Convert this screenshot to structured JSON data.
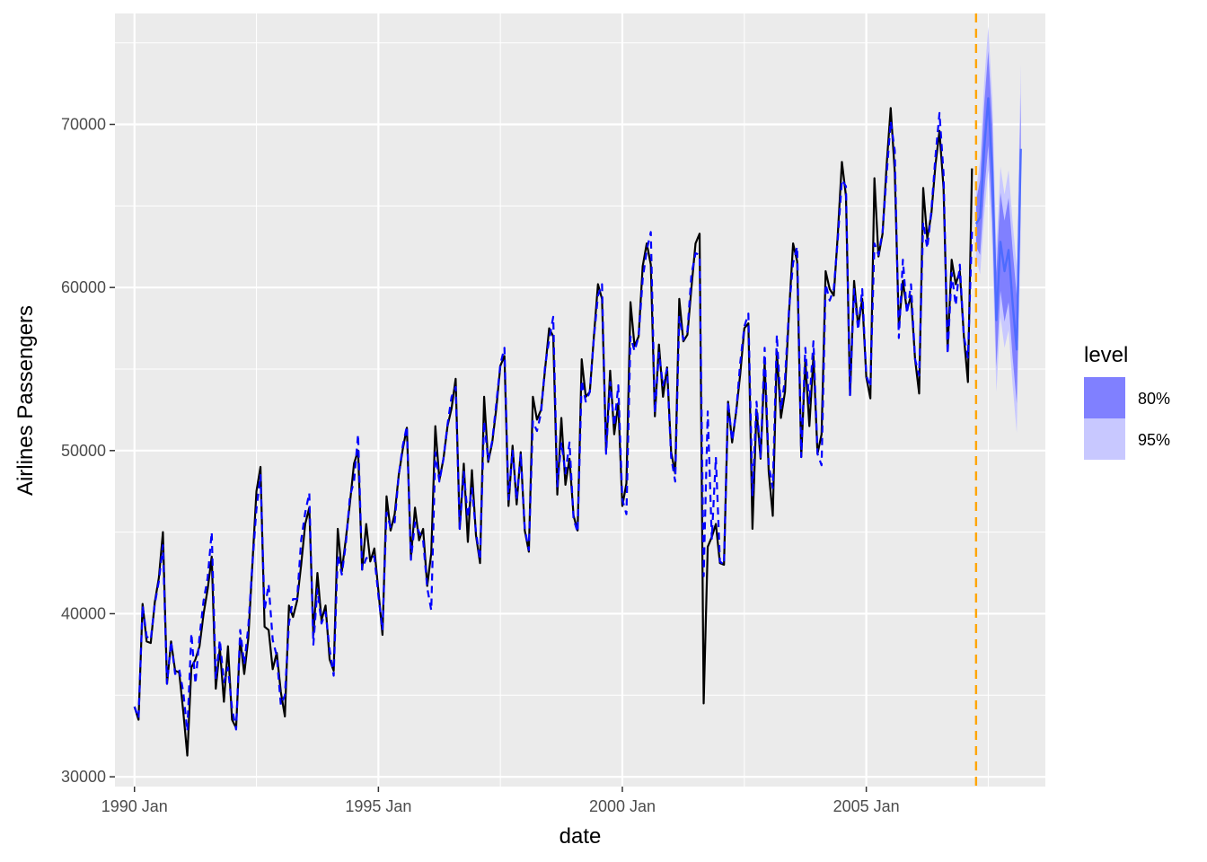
{
  "chart_data": {
    "type": "line",
    "title": "",
    "xlabel": "date",
    "ylabel": "Airlines Passengers",
    "ylim": [
      29400,
      76800
    ],
    "xlim": [
      1989.6,
      2008.67
    ],
    "x_ticks": [
      {
        "value": 1990,
        "label": "1990 Jan"
      },
      {
        "value": 1995,
        "label": "1995 Jan"
      },
      {
        "value": 2000,
        "label": "2000 Jan"
      },
      {
        "value": 2005,
        "label": "2005 Jan"
      }
    ],
    "y_ticks": [
      30000,
      40000,
      50000,
      60000,
      70000
    ],
    "y_tick_labels": [
      "30000",
      "40000",
      "50000",
      "60000",
      "70000"
    ],
    "grid": true,
    "colors": {
      "panel": "#ebebeb",
      "grid": "#ffffff",
      "actual": "#000000",
      "fitted": "#0000ff",
      "forecast_line": "#4d6bff",
      "band_80": "#8080ff",
      "band_95": "#c8c8ff",
      "cutoff": "#ffa500"
    },
    "cutoff_date": 2007.25,
    "actual": {
      "start": 1990,
      "values": [
        34300,
        33500,
        40600,
        38300,
        38200,
        40700,
        42200,
        45000,
        35700,
        38300,
        36500,
        36400,
        34000,
        31300,
        36700,
        37200,
        38000,
        40000,
        41500,
        43500,
        35400,
        37900,
        34600,
        38000,
        33500,
        33000,
        38500,
        36300,
        38500,
        43000,
        47500,
        49000,
        39200,
        39000,
        36600,
        37600,
        35200,
        33700,
        40500,
        39800,
        40800,
        43000,
        45500,
        46500,
        38700,
        42500,
        39600,
        40500,
        37200,
        36500,
        45200,
        42600,
        44600,
        46800,
        49200,
        50000,
        42700,
        45500,
        43200,
        44000,
        41400,
        38700,
        47200,
        45100,
        46100,
        48500,
        50100,
        51400,
        43400,
        46500,
        44500,
        45200,
        41700,
        43700,
        51500,
        48200,
        49500,
        51500,
        52600,
        54400,
        45200,
        49200,
        44400,
        48800,
        44800,
        43100,
        53300,
        49300,
        50500,
        52600,
        55200,
        55800,
        46600,
        50300,
        46700,
        49900,
        45100,
        43800,
        53300,
        51900,
        52500,
        55000,
        57500,
        57000,
        47300,
        52000,
        47900,
        49500,
        46000,
        45100,
        55600,
        53300,
        53600,
        57000,
        60200,
        59300,
        50000,
        54900,
        51000,
        52900,
        46600,
        48000,
        59100,
        56400,
        57000,
        61300,
        62700,
        61400,
        52100,
        56500,
        53300,
        55100,
        49900,
        48600,
        59300,
        56700,
        57100,
        60000,
        62700,
        63300,
        34500,
        44100,
        44700,
        45500,
        43100,
        43000,
        53000,
        50500,
        52400,
        54700,
        57500,
        57800,
        45200,
        52500,
        49500,
        55400,
        48700,
        46000,
        56100,
        52000,
        53600,
        58500,
        62700,
        61600,
        49600,
        55500,
        51500,
        55800,
        49800,
        51000,
        61000,
        59900,
        59500,
        63300,
        67700,
        65600,
        53400,
        60400,
        57600,
        59300,
        54500,
        53200,
        66700,
        61900,
        63300,
        67500,
        71000,
        67100,
        57600,
        60400,
        58600,
        59500,
        55600,
        53500,
        66100,
        63000,
        64500,
        67500,
        69600,
        66100,
        56200,
        61700,
        60200,
        61000,
        57000,
        54200,
        67300
      ]
    },
    "fitted": {
      "start": 1990,
      "values": [
        34300,
        33600,
        40500,
        38600,
        38400,
        40600,
        42000,
        44200,
        35700,
        38300,
        36300,
        36600,
        35200,
        32800,
        38800,
        35700,
        38600,
        40800,
        42200,
        45000,
        36000,
        38400,
        35800,
        36700,
        34200,
        32900,
        39000,
        36900,
        39200,
        43000,
        46400,
        48500,
        40200,
        41800,
        38400,
        37400,
        34400,
        35000,
        39400,
        40900,
        40900,
        44500,
        46200,
        47400,
        38100,
        41500,
        39400,
        40100,
        37800,
        36200,
        43600,
        42400,
        44300,
        47200,
        48100,
        51000,
        42700,
        43400,
        43500,
        43500,
        41100,
        39000,
        46200,
        45300,
        45600,
        48500,
        50300,
        51500,
        43300,
        45600,
        45000,
        44500,
        41600,
        40200,
        49900,
        48100,
        49500,
        51600,
        53300,
        53900,
        45200,
        48700,
        45900,
        47700,
        45000,
        43300,
        51800,
        49400,
        50600,
        52900,
        55300,
        56300,
        47000,
        50000,
        47000,
        49800,
        45200,
        43900,
        51800,
        51200,
        52300,
        55200,
        56800,
        58200,
        47800,
        50500,
        48600,
        50500,
        45800,
        45000,
        54300,
        53000,
        53600,
        56900,
        59500,
        60200,
        49800,
        54200,
        51500,
        54000,
        47000,
        46100,
        57000,
        56100,
        57000,
        60500,
        62300,
        63400,
        52300,
        56000,
        54000,
        55000,
        49600,
        48100,
        58200,
        56800,
        57300,
        60800,
        62100,
        62000,
        42300,
        52400,
        44600,
        49600,
        43200,
        43000,
        53000,
        50600,
        52400,
        55400,
        57600,
        58400,
        47200,
        53000,
        49600,
        56300,
        49100,
        47700,
        57100,
        52500,
        54400,
        58700,
        61500,
        62500,
        49600,
        56300,
        52900,
        56700,
        49800,
        49100,
        60200,
        59200,
        59900,
        63000,
        66600,
        66200,
        53400,
        59900,
        57400,
        59900,
        54600,
        53900,
        62700,
        62000,
        63400,
        66900,
        70200,
        68400,
        56900,
        61700,
        58400,
        60200,
        55600,
        54600,
        64000,
        62400,
        64700,
        68000,
        70700,
        67000,
        55900,
        60900,
        58900,
        61400,
        57000,
        55700,
        63500
      ]
    },
    "forecast": {
      "start": 2007.25,
      "mean": [
        63900,
        64300,
        68500,
        71600,
        67000,
        58000,
        62800,
        61000,
        62300,
        59000,
        56200,
        68500
      ],
      "lo80": [
        62500,
        62000,
        65800,
        68700,
        64000,
        55100,
        59800,
        57900,
        59100,
        55700,
        52900,
        65100
      ],
      "hi80": [
        65300,
        66600,
        71200,
        74500,
        70000,
        60900,
        65800,
        64100,
        65500,
        62300,
        59500,
        71900
      ],
      "lo95": [
        61800,
        60800,
        64400,
        67200,
        62400,
        53600,
        58200,
        56300,
        57400,
        54000,
        51100,
        63300
      ],
      "hi95": [
        66000,
        67800,
        72600,
        76000,
        71600,
        62400,
        67400,
        65700,
        67200,
        64000,
        61300,
        73700
      ]
    },
    "legend": {
      "title": "level",
      "position": "right",
      "items": [
        {
          "label": "80%",
          "color": "#8080ff"
        },
        {
          "label": "95%",
          "color": "#c8c8ff"
        }
      ]
    }
  }
}
